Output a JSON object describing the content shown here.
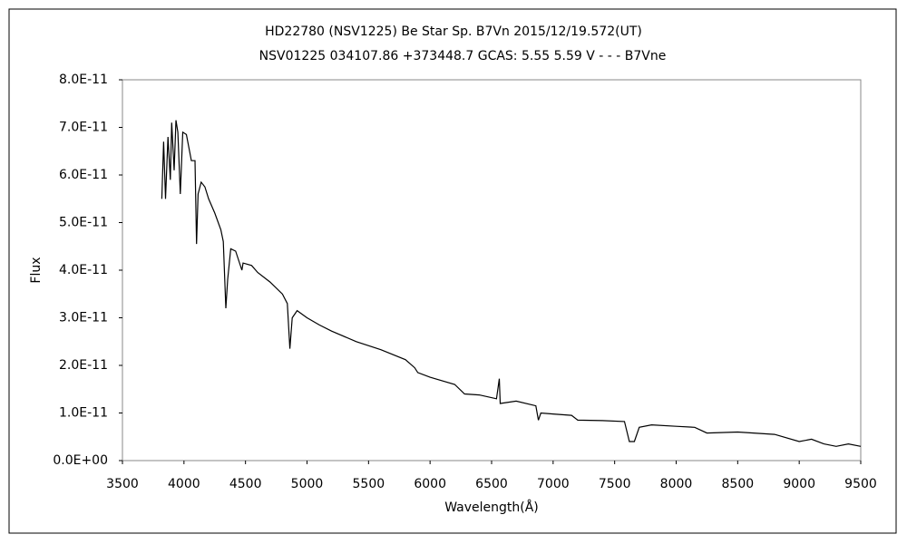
{
  "chart_data": {
    "type": "line",
    "title": "HD22780 (NSV1225)    Be Star    Sp. B7Vn    2015/12/19.572(UT)",
    "subtitle": "NSV01225 034107.86 +373448.7 GCAS: 5.55 5.59 V - - - B7Vne",
    "x_label": "Wavelength(Å)",
    "y_label": "Flux",
    "color": "#000000",
    "xlim": [
      3500,
      9500
    ],
    "xticks": [
      3500,
      4000,
      4500,
      5000,
      5500,
      6000,
      6500,
      7000,
      7500,
      8000,
      8500,
      9000,
      9500
    ],
    "ylim": [
      0,
      8e-11
    ],
    "yticks": [
      {
        "value": 0,
        "label": "0.0E+00"
      },
      {
        "value": 1e-11,
        "label": "1.0E-11"
      },
      {
        "value": 2e-11,
        "label": "2.0E-11"
      },
      {
        "value": 3e-11,
        "label": "3.0E-11"
      },
      {
        "value": 4e-11,
        "label": "4.0E-11"
      },
      {
        "value": 5e-11,
        "label": "5.0E-11"
      },
      {
        "value": 6e-11,
        "label": "6.0E-11"
      },
      {
        "value": 7e-11,
        "label": "7.0E-11"
      },
      {
        "value": 8e-11,
        "label": "8.0E-11"
      }
    ],
    "x": [
      3820,
      3835,
      3850,
      3870,
      3889,
      3900,
      3920,
      3935,
      3950,
      3970,
      3990,
      4020,
      4060,
      4090,
      4102,
      4115,
      4140,
      4170,
      4200,
      4250,
      4300,
      4320,
      4340,
      4355,
      4380,
      4420,
      4471,
      4480,
      4550,
      4600,
      4700,
      4800,
      4840,
      4861,
      4880,
      4920,
      5000,
      5100,
      5200,
      5400,
      5600,
      5800,
      5875,
      5900,
      6000,
      6200,
      6280,
      6400,
      6540,
      6563,
      6570,
      6700,
      6860,
      6880,
      6900,
      7000,
      7150,
      7200,
      7400,
      7580,
      7620,
      7660,
      7700,
      7800,
      8000,
      8150,
      8250,
      8500,
      8800,
      9000,
      9100,
      9200,
      9300,
      9400,
      9500
    ],
    "values": [
      5.5e-11,
      6.7e-11,
      5.5e-11,
      6.8e-11,
      5.9e-11,
      7.1e-11,
      6.1e-11,
      7.15e-11,
      6.9e-11,
      5.6e-11,
      6.9e-11,
      6.85e-11,
      6.3e-11,
      6.3e-11,
      4.55e-11,
      5.6e-11,
      5.85e-11,
      5.75e-11,
      5.5e-11,
      5.2e-11,
      4.85e-11,
      4.6e-11,
      3.2e-11,
      3.8e-11,
      4.45e-11,
      4.4e-11,
      4e-11,
      4.15e-11,
      4.1e-11,
      3.95e-11,
      3.75e-11,
      3.5e-11,
      3.3e-11,
      2.35e-11,
      3e-11,
      3.15e-11,
      3e-11,
      2.85e-11,
      2.72e-11,
      2.5e-11,
      2.33e-11,
      2.12e-11,
      1.95e-11,
      1.85e-11,
      1.75e-11,
      1.6e-11,
      1.4e-11,
      1.38e-11,
      1.3e-11,
      1.72e-11,
      1.2e-11,
      1.25e-11,
      1.15e-11,
      8.5e-12,
      1e-11,
      9.8e-12,
      9.5e-12,
      8.5e-12,
      8.4e-12,
      8.2e-12,
      4e-12,
      4e-12,
      7e-12,
      7.5e-12,
      7.2e-12,
      7e-12,
      5.8e-12,
      6e-12,
      5.5e-12,
      4e-12,
      4.5e-12,
      3.5e-12,
      3e-12,
      3.5e-12,
      3e-12
    ]
  }
}
